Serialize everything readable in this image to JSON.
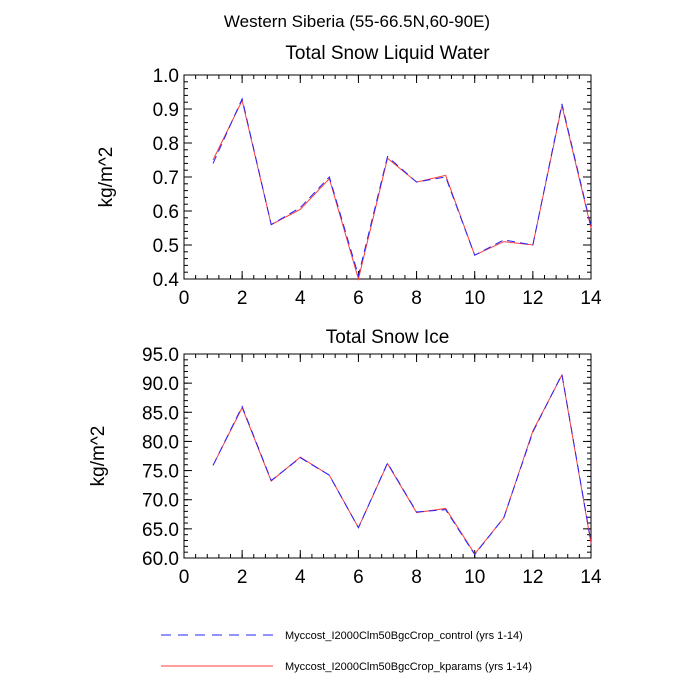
{
  "suptitle": "Western Siberia (55-66.5N,60-90E)",
  "colors": {
    "control": "#2424ff",
    "kparams": "#ff3b3b"
  },
  "legend": {
    "control_label": "Myccost_I2000Clm50BgcCrop_control (yrs 1-14)",
    "kparams_label": "Myccost_I2000Clm50BgcCrop_kparams (yrs 1-14)"
  },
  "chart_data": [
    {
      "type": "line",
      "title": "Total Snow Liquid Water",
      "ylabel": "kg/m^2",
      "xlabel": "",
      "xlim": [
        0,
        14
      ],
      "ylim": [
        0.4,
        1.0
      ],
      "xticks": [
        0,
        2,
        4,
        6,
        8,
        10,
        12,
        14
      ],
      "xtick_labels": [
        "0",
        "2",
        "4",
        "6",
        "8",
        "10",
        "12",
        "14"
      ],
      "yticks": [
        0.4,
        0.5,
        0.6,
        0.7,
        0.8,
        0.9,
        1.0
      ],
      "ytick_labels": [
        "0.4",
        "0.5",
        "0.6",
        "0.7",
        "0.8",
        "0.9",
        "1.0"
      ],
      "x": [
        1,
        2,
        3,
        4,
        5,
        6,
        7,
        8,
        9,
        10,
        11,
        12,
        13,
        14
      ],
      "series": [
        {
          "name": "Myccost_I2000Clm50BgcCrop_control (yrs 1-14)",
          "style": "dashed",
          "values": [
            0.74,
            0.93,
            0.56,
            0.61,
            0.7,
            0.41,
            0.76,
            0.685,
            0.7,
            0.47,
            0.515,
            0.5,
            0.915,
            0.555
          ]
        },
        {
          "name": "Myccost_I2000Clm50BgcCrop_kparams (yrs 1-14)",
          "style": "solid",
          "values": [
            0.75,
            0.925,
            0.56,
            0.605,
            0.695,
            0.4,
            0.755,
            0.685,
            0.705,
            0.47,
            0.51,
            0.5,
            0.91,
            0.55
          ]
        }
      ]
    },
    {
      "type": "line",
      "title": "Total Snow Ice",
      "ylabel": "kg/m^2",
      "xlabel": "",
      "xlim": [
        0,
        14
      ],
      "ylim": [
        60.0,
        95.0
      ],
      "xticks": [
        0,
        2,
        4,
        6,
        8,
        10,
        12,
        14
      ],
      "xtick_labels": [
        "0",
        "2",
        "4",
        "6",
        "8",
        "10",
        "12",
        "14"
      ],
      "yticks": [
        60,
        65,
        70,
        75,
        80,
        85,
        90,
        95
      ],
      "ytick_labels": [
        "60.0",
        "65.0",
        "70.0",
        "75.0",
        "80.0",
        "85.0",
        "90.0",
        "95.0"
      ],
      "x": [
        1,
        2,
        3,
        4,
        5,
        6,
        7,
        8,
        9,
        10,
        11,
        12,
        13,
        14
      ],
      "series": [
        {
          "name": "Myccost_I2000Clm50BgcCrop_control (yrs 1-14)",
          "style": "dashed",
          "values": [
            75.9,
            86.0,
            73.3,
            77.2,
            74.2,
            65.2,
            76.3,
            67.9,
            68.3,
            60.6,
            66.9,
            81.6,
            91.5,
            62.7
          ]
        },
        {
          "name": "Myccost_I2000Clm50BgcCrop_kparams (yrs 1-14)",
          "style": "solid",
          "values": [
            75.9,
            85.8,
            73.2,
            77.3,
            74.2,
            65.2,
            76.2,
            67.8,
            68.5,
            60.7,
            66.9,
            81.8,
            91.4,
            62.5
          ]
        }
      ]
    }
  ]
}
